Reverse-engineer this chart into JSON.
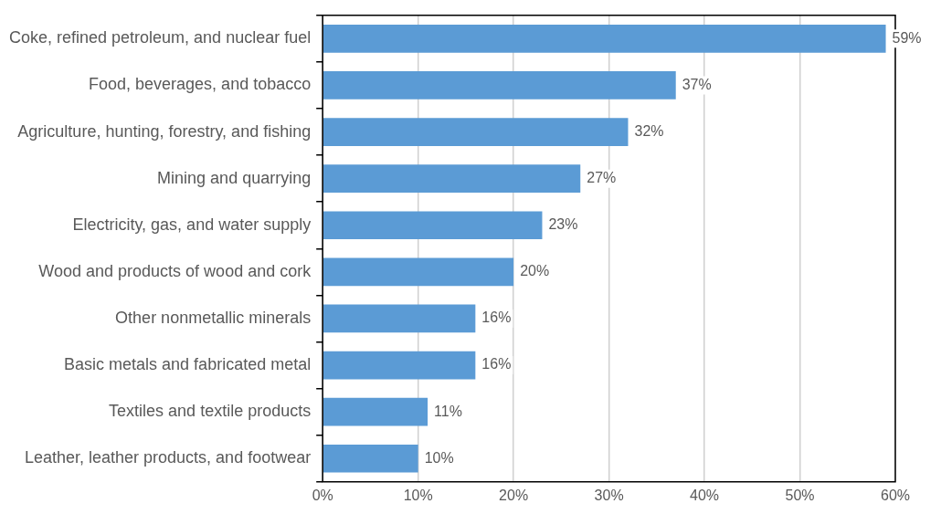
{
  "chart_data": {
    "type": "bar",
    "orientation": "horizontal",
    "categories": [
      "Coke, refined petroleum, and nuclear fuel",
      "Food, beverages, and tobacco",
      "Agriculture, hunting, forestry, and fishing",
      "Mining and quarrying",
      "Electricity, gas, and water supply",
      "Wood and products of wood and cork",
      "Other nonmetallic minerals",
      "Basic metals and fabricated metal",
      "Textiles and textile products",
      "Leather, leather products, and footwear"
    ],
    "values": [
      59,
      37,
      32,
      27,
      23,
      20,
      16,
      16,
      11,
      10
    ],
    "value_labels": [
      "59%",
      "37%",
      "32%",
      "27%",
      "23%",
      "20%",
      "16%",
      "16%",
      "11%",
      "10%"
    ],
    "color": "#5b9bd5",
    "xlim": [
      0,
      60
    ],
    "xticks": [
      {
        "value": 0,
        "label": "0%"
      },
      {
        "value": 10,
        "label": "10%"
      },
      {
        "value": 20,
        "label": "20%"
      },
      {
        "value": 30,
        "label": "30%"
      },
      {
        "value": 40,
        "label": "40%"
      },
      {
        "value": 50,
        "label": "50%"
      },
      {
        "value": 60,
        "label": "60%"
      }
    ],
    "grid": "x",
    "legend": false
  }
}
